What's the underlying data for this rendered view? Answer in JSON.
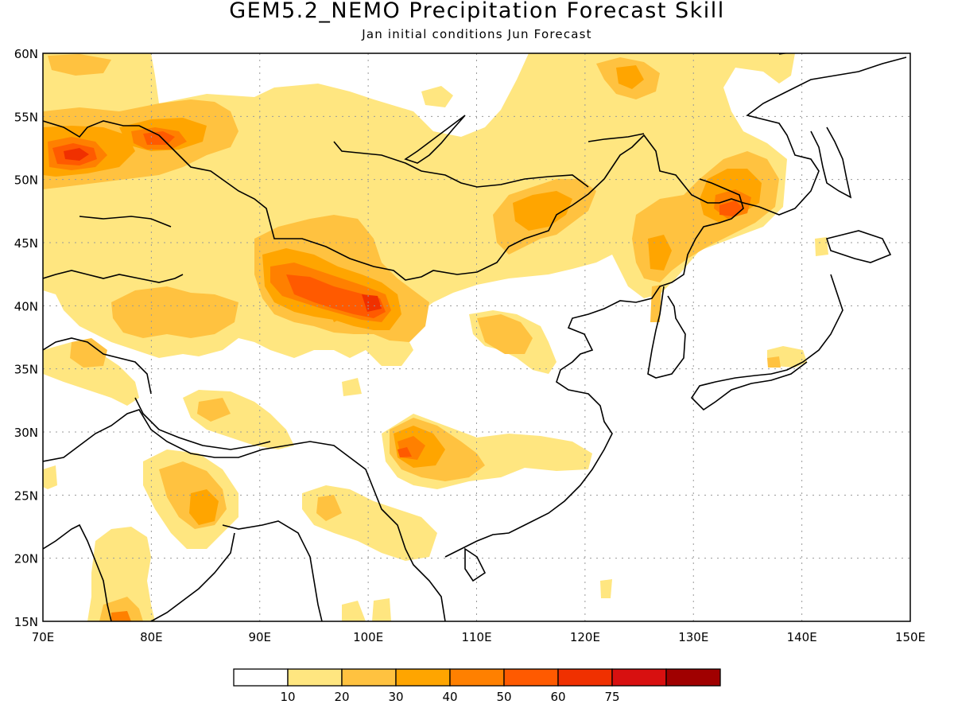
{
  "title": "GEM5.2_NEMO Precipitation Forecast Skill",
  "subtitle": "Jan initial conditions   Jun Forecast",
  "map": {
    "lon_range": [
      70,
      150
    ],
    "lat_range": [
      15,
      60
    ],
    "lon_ticks": [
      "70E",
      "80E",
      "90E",
      "100E",
      "110E",
      "120E",
      "130E",
      "140E",
      "150E"
    ],
    "lat_ticks": [
      "15N",
      "20N",
      "25N",
      "30N",
      "35N",
      "40N",
      "45N",
      "50N",
      "55N",
      "60N"
    ],
    "grid": "dotted"
  },
  "colorbar": {
    "labels": [
      "10",
      "20",
      "30",
      "40",
      "50",
      "60",
      "75"
    ],
    "colors": [
      "#ffffff",
      "#ffe680",
      "#ffc240",
      "#ffa500",
      "#ff8000",
      "#ff5a00",
      "#f03000",
      "#d81010",
      "#a00000"
    ]
  },
  "chart_data": {
    "type": "heatmap",
    "regions": [
      {
        "lon": 73.5,
        "lat": 52,
        "rx": 5,
        "ry": 2.5,
        "level": 4
      },
      {
        "lon": 82,
        "lat": 53,
        "rx": 4,
        "ry": 1.8,
        "level": 3
      },
      {
        "lon": 96,
        "lat": 42,
        "rx": 6,
        "ry": 3,
        "level": 4
      },
      {
        "lon": 101,
        "lat": 40.5,
        "rx": 4,
        "ry": 2,
        "level": 5
      },
      {
        "lon": 104,
        "lat": 28.5,
        "rx": 4,
        "ry": 2,
        "level": 3
      },
      {
        "lon": 132.5,
        "lat": 47.5,
        "rx": 3,
        "ry": 3,
        "level": 4
      },
      {
        "lon": 118,
        "lat": 47,
        "rx": 4,
        "ry": 2.5,
        "level": 2
      },
      {
        "lon": 126,
        "lat": 43,
        "rx": 2.5,
        "ry": 3,
        "level": 2
      },
      {
        "lon": 86,
        "lat": 23.5,
        "rx": 3.5,
        "ry": 2.5,
        "level": 2
      },
      {
        "lon": 109,
        "lat": 37,
        "rx": 3,
        "ry": 2,
        "level": 2
      },
      {
        "lon": 77,
        "lat": 15.8,
        "rx": 2,
        "ry": 1.5,
        "level": 4
      }
    ]
  }
}
